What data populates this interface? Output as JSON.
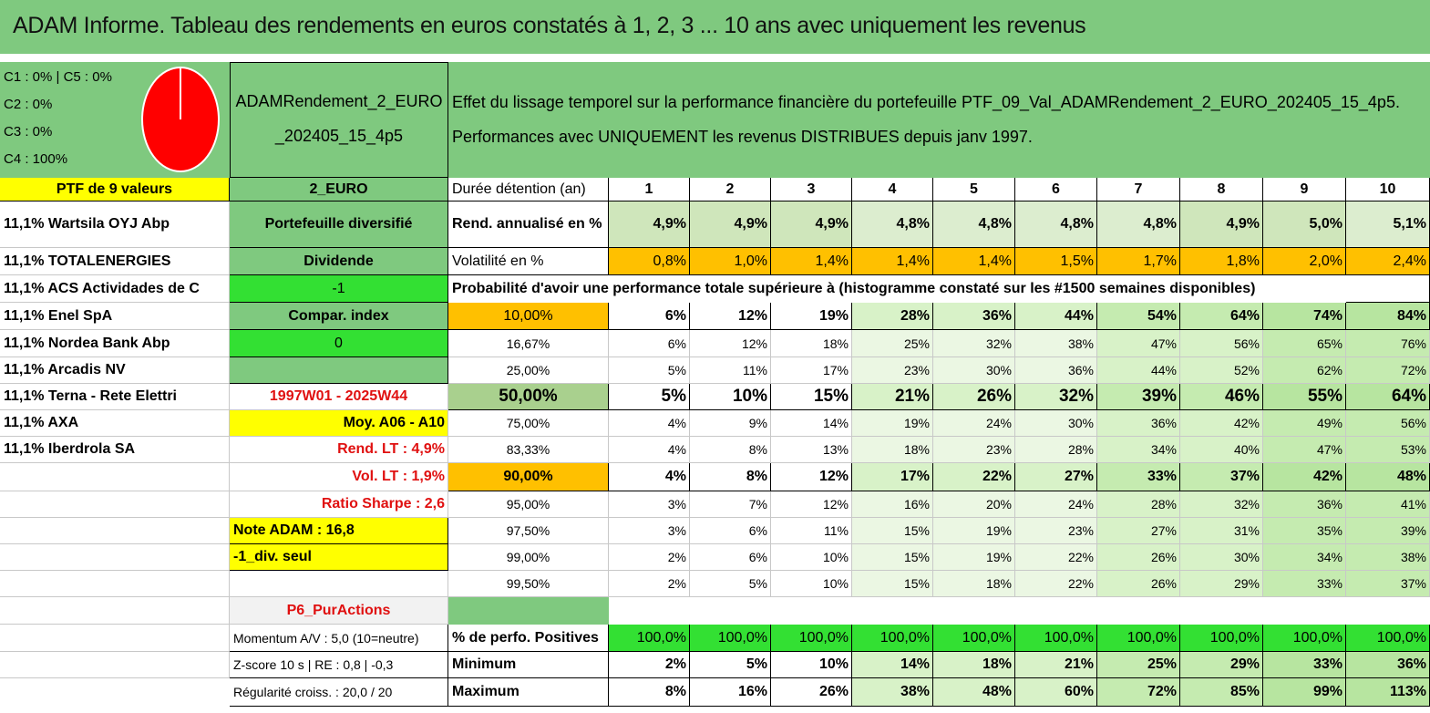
{
  "title": "ADAM Informe. Tableau des rendements en euros constatés à 1, 2, 3 ... 10 ans avec uniquement les revenus",
  "allocation": {
    "lines": [
      "C1 : 0% | C5 : 0%",
      "C2 : 0%",
      "C3 : 0%",
      "C4 : 100%"
    ],
    "pie_color": "#ff0000",
    "pie_value_percent": 100
  },
  "portfolio_name": {
    "line1": "ADAMRendement_2_EURO",
    "line2": "_202405_15_4p5"
  },
  "description": {
    "line1": "Effet du lissage temporel sur la performance financière du portefeuille PTF_09_Val_ADAMRendement_2_EURO_202405_15_4p5.",
    "line2": "Performances avec UNIQUEMENT les revenus DISTRIBUES depuis janv 1997."
  },
  "header": {
    "ptf_label": "PTF de 9 valeurs",
    "category": "2_EURO",
    "duration_label": "Durée détention (an)",
    "years": [
      "1",
      "2",
      "3",
      "4",
      "5",
      "6",
      "7",
      "8",
      "9",
      "10"
    ]
  },
  "holdings": [
    "11,1% Wartsila OYJ Abp",
    "11,1% TOTALENERGIES",
    "11,1% ACS Actividades de C",
    "11,1% Enel SpA",
    "11,1% Nordea Bank Abp",
    "11,1% Arcadis NV",
    "11,1% Terna - Rete Elettri",
    "11,1% AXA",
    "11,1% Iberdrola SA"
  ],
  "side": {
    "diversified": "Portefeuille diversifié",
    "dividend": "Dividende",
    "dividend_value": "-1",
    "compar": "Compar. index",
    "compar_value": "0",
    "empty": "",
    "period": "1997W01 - 2025W44",
    "moy": "Moy. A06 - A10",
    "rend_lt": "Rend. LT : 4,9%",
    "vol_lt": "Vol. LT : 1,9%",
    "sharpe": "Ratio Sharpe : 2,6",
    "note": "Note ADAM : 16,8",
    "div_seul": "-1_div. seul",
    "p6": "P6_PurActions",
    "momentum": "Momentum A/V : 5,0 (10=neutre)",
    "zscore": "Z-score 10 s | RE : 0,8 | -0,3",
    "regularite": "Régularité croiss. : 20,0 / 20"
  },
  "rend": {
    "label": "Rend. annualisé en %",
    "values": [
      "4,9%",
      "4,9%",
      "4,9%",
      "4,8%",
      "4,8%",
      "4,8%",
      "4,8%",
      "4,9%",
      "5,0%",
      "5,1%"
    ]
  },
  "vol": {
    "label": "Volatilité en %",
    "values": [
      "0,8%",
      "1,0%",
      "1,4%",
      "1,4%",
      "1,4%",
      "1,5%",
      "1,7%",
      "1,8%",
      "2,0%",
      "2,4%"
    ]
  },
  "prob_title": "Probabilité d'avoir une performance totale supérieure à (histogramme constaté sur les #1500 semaines disponibles)",
  "prob_rows": [
    {
      "threshold": "10,00%",
      "values": [
        "6%",
        "12%",
        "19%",
        "28%",
        "36%",
        "44%",
        "54%",
        "64%",
        "74%",
        "84%"
      ]
    },
    {
      "threshold": "16,67%",
      "values": [
        "6%",
        "12%",
        "18%",
        "25%",
        "32%",
        "38%",
        "47%",
        "56%",
        "65%",
        "76%"
      ]
    },
    {
      "threshold": "25,00%",
      "values": [
        "5%",
        "11%",
        "17%",
        "23%",
        "30%",
        "36%",
        "44%",
        "52%",
        "62%",
        "72%"
      ]
    },
    {
      "threshold": "50,00%",
      "values": [
        "5%",
        "10%",
        "15%",
        "21%",
        "26%",
        "32%",
        "39%",
        "46%",
        "55%",
        "64%"
      ]
    },
    {
      "threshold": "75,00%",
      "values": [
        "4%",
        "9%",
        "14%",
        "19%",
        "24%",
        "30%",
        "36%",
        "42%",
        "49%",
        "56%"
      ]
    },
    {
      "threshold": "83,33%",
      "values": [
        "4%",
        "8%",
        "13%",
        "18%",
        "23%",
        "28%",
        "34%",
        "40%",
        "47%",
        "53%"
      ]
    },
    {
      "threshold": "90,00%",
      "values": [
        "4%",
        "8%",
        "12%",
        "17%",
        "22%",
        "27%",
        "33%",
        "37%",
        "42%",
        "48%"
      ]
    },
    {
      "threshold": "95,00%",
      "values": [
        "3%",
        "7%",
        "12%",
        "16%",
        "20%",
        "24%",
        "28%",
        "32%",
        "36%",
        "41%"
      ]
    },
    {
      "threshold": "97,50%",
      "values": [
        "3%",
        "6%",
        "11%",
        "15%",
        "19%",
        "23%",
        "27%",
        "31%",
        "35%",
        "39%"
      ]
    },
    {
      "threshold": "99,00%",
      "values": [
        "2%",
        "6%",
        "10%",
        "15%",
        "19%",
        "22%",
        "26%",
        "30%",
        "34%",
        "38%"
      ]
    },
    {
      "threshold": "99,50%",
      "values": [
        "2%",
        "5%",
        "10%",
        "15%",
        "18%",
        "22%",
        "26%",
        "29%",
        "33%",
        "37%"
      ]
    }
  ],
  "positives": {
    "label": "% de perfo. Positives",
    "values": [
      "100,0%",
      "100,0%",
      "100,0%",
      "100,0%",
      "100,0%",
      "100,0%",
      "100,0%",
      "100,0%",
      "100,0%",
      "100,0%"
    ]
  },
  "minimum": {
    "label": "Minimum",
    "values": [
      "2%",
      "5%",
      "10%",
      "14%",
      "18%",
      "21%",
      "25%",
      "29%",
      "33%",
      "36%"
    ]
  },
  "maximum": {
    "label": "Maximum",
    "values": [
      "8%",
      "16%",
      "26%",
      "38%",
      "48%",
      "60%",
      "72%",
      "85%",
      "99%",
      "113%"
    ]
  },
  "colors": {
    "header_green": "#7fc97f",
    "bright_green": "#33e033",
    "yellow": "#ffff00",
    "orange": "#ffc000",
    "red_text": "#e01010"
  }
}
